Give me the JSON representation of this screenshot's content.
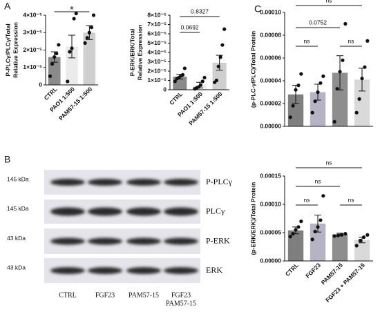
{
  "panel_labels": [
    "A",
    "B",
    "C"
  ],
  "chart_data": [
    {
      "type": "bar",
      "ylabel": [
        "P-PLCγ/PLCγ/Total",
        "Relative Expression"
      ],
      "categories": [
        "CTRL",
        "PAO1 1:500",
        "PAM57-15 1:500"
      ],
      "values": [
        1.6e-05,
        2.2e-05,
        3e-05
      ],
      "errors": [
        3e-06,
        6.5e-06,
        4e-06
      ],
      "points": [
        [
          5e-06,
          1.2e-05,
          1.6e-05,
          1.8e-05,
          2.3e-05
        ],
        [
          2e-06,
          1.9e-05,
          2.1e-05,
          3.8e-05,
          4.1e-05
        ],
        [
          2.4e-05,
          2.7e-05,
          3e-05,
          3.3e-05,
          4e-05
        ]
      ],
      "colors": [
        "#8a8a8a",
        "#ebebeb",
        "#cfcfcf"
      ],
      "ylim": [
        0,
        4e-05
      ],
      "yticks": [
        0,
        {
          "value": 1e-05,
          "label": "1×10⁻⁵"
        },
        {
          "value": 2e-05,
          "label": "2×10⁻⁵"
        },
        {
          "value": 3e-05,
          "label": "3×10⁻⁵"
        },
        {
          "value": 4e-05,
          "label": "4×10⁻⁵"
        }
      ],
      "brackets": [
        {
          "between": [
            0,
            2
          ],
          "label": "*"
        }
      ]
    },
    {
      "type": "bar",
      "ylabel": [
        "P-ERK/ERK/Total",
        "Relative Expression"
      ],
      "categories": [
        "CTRL",
        "PAO1 1:500",
        "PAM57-15 1:500"
      ],
      "values": [
        1.4e-05,
        5e-06,
        2.9e-05
      ],
      "errors": [
        2.5e-06,
        3e-06,
        8e-06
      ],
      "points": [
        [
          9e-06,
          1.2e-05,
          1.3e-05,
          1.5e-05,
          1.6e-05,
          2.3e-05
        ],
        [
          1e-06,
          2e-06,
          3e-06,
          5e-06,
          9e-06,
          1.3e-05
        ],
        [
          8e-06,
          1e-05,
          2.5e-05,
          3.5e-05,
          4.8e-05,
          6.5e-05
        ]
      ],
      "colors": [
        "#8a8a8a",
        "#ebebeb",
        "#cfcfcf"
      ],
      "ylim": [
        0,
        8e-05
      ],
      "yticks": [
        0,
        {
          "value": 1e-05,
          "label": "1×10⁻⁵"
        },
        {
          "value": 2e-05,
          "label": "2×10⁻⁵"
        },
        {
          "value": 3e-05,
          "label": "3×10⁻⁵"
        },
        {
          "value": 4e-05,
          "label": "4×10⁻⁵"
        },
        {
          "value": 5e-05,
          "label": "5×10⁻⁵"
        },
        {
          "value": 6e-05,
          "label": "6×10⁻⁵"
        },
        {
          "value": 7e-05,
          "label": "7×10⁻⁵"
        },
        {
          "value": 8e-05,
          "label": "8×10⁻⁵"
        }
      ],
      "brackets": [
        {
          "between": [
            0,
            1
          ],
          "label": "0.0692"
        },
        {
          "between": [
            0,
            2
          ],
          "label": "0.8327"
        }
      ]
    },
    {
      "type": "bar",
      "ylabel": [
        "(p-PLC-γ/PLC)/Total Protein"
      ],
      "values": [
        2.8e-05,
        3e-05,
        4.7e-05,
        4.1e-05
      ],
      "errors": [
        8e-06,
        7e-06,
        1.5e-05,
        1e-05
      ],
      "points": [
        [
          8e-06,
          1.8e-05,
          3.2e-05,
          3.6e-05,
          4.6e-05
        ],
        [
          1.2e-05,
          2.2e-05,
          3e-05,
          3.8e-05,
          4.4e-05
        ],
        [
          4e-06,
          3.3e-05,
          4.8e-05,
          5.8e-05,
          9e-05
        ],
        [
          1.2e-05,
          2.4e-05,
          4.2e-05,
          5.2e-05,
          7.5e-05
        ]
      ],
      "colors": [
        "#7f7f7f",
        "#b6b4c4",
        "#8e8e8e",
        "#d9d9d9"
      ],
      "ylim": [
        0,
        0.0001
      ],
      "yticks": [
        {
          "value": 0,
          "label": "0.00000"
        },
        {
          "value": 2e-05,
          "label": "0.00002"
        },
        {
          "value": 4e-05,
          "label": "0.00004"
        },
        {
          "value": 6e-05,
          "label": "0.00006"
        },
        {
          "value": 8e-05,
          "label": "0.00008"
        },
        {
          "value": 0.0001,
          "label": "0.00010"
        }
      ],
      "brackets": [
        {
          "between": [
            0,
            3
          ],
          "label": "ns"
        },
        {
          "between": [
            0,
            2
          ],
          "label": "0.0752"
        },
        {
          "between": [
            0,
            1
          ],
          "label": "ns"
        },
        {
          "between": [
            2,
            3
          ],
          "label": "ns"
        }
      ]
    },
    {
      "type": "bar",
      "ylabel": [
        "(p-ERK/ERK)/Total Protein"
      ],
      "categories": [
        "CTRL",
        "FGF23",
        "PAM57-15",
        "FGF23 + PAM57-15"
      ],
      "values": [
        5.4e-05,
        6.6e-05,
        4.7e-05,
        3.7e-05
      ],
      "errors": [
        6e-06,
        1.5e-05,
        2e-06,
        5e-06
      ],
      "points": [
        [
          4.3e-05,
          4.8e-05,
          5.5e-05,
          6e-05,
          7e-05
        ],
        [
          3.8e-05,
          5.2e-05,
          6e-05,
          7.2e-05,
          0.000115
        ],
        [
          4.4e-05,
          4.5e-05,
          4.6e-05,
          4.8e-05
        ],
        [
          2.7e-05,
          3.6e-05,
          4.2e-05,
          4.6e-05
        ]
      ],
      "colors": [
        "#7f7f7f",
        "#b6b4c4",
        "#8e8e8e",
        "#d9d9d9"
      ],
      "ylim": [
        0,
        0.00015
      ],
      "yticks": [
        {
          "value": 0,
          "label": "0.00000"
        },
        {
          "value": 5e-05,
          "label": "0.00005"
        },
        {
          "value": 0.0001,
          "label": "0.00010"
        },
        {
          "value": 0.00015,
          "label": "0.00015"
        }
      ],
      "brackets": [
        {
          "between": [
            0,
            3
          ],
          "label": "ns"
        },
        {
          "between": [
            0,
            2
          ],
          "label": "ns"
        },
        {
          "between": [
            0,
            1
          ],
          "label": "ns"
        },
        {
          "between": [
            2,
            3
          ],
          "label": "ns"
        }
      ]
    }
  ],
  "blot": {
    "rows": [
      {
        "size": "145 kDa",
        "protein": "P-PLCγ"
      },
      {
        "size": "145 kDa",
        "protein": "PLCγ"
      },
      {
        "size": "43 kDa",
        "protein": "P-ERK"
      },
      {
        "size": "43 kDa",
        "protein": "ERK"
      }
    ],
    "lanes": [
      [
        "CTRL"
      ],
      [
        "FGF23"
      ],
      [
        "PAM57-15"
      ],
      [
        "FGF23",
        "PAM57-15"
      ]
    ]
  }
}
